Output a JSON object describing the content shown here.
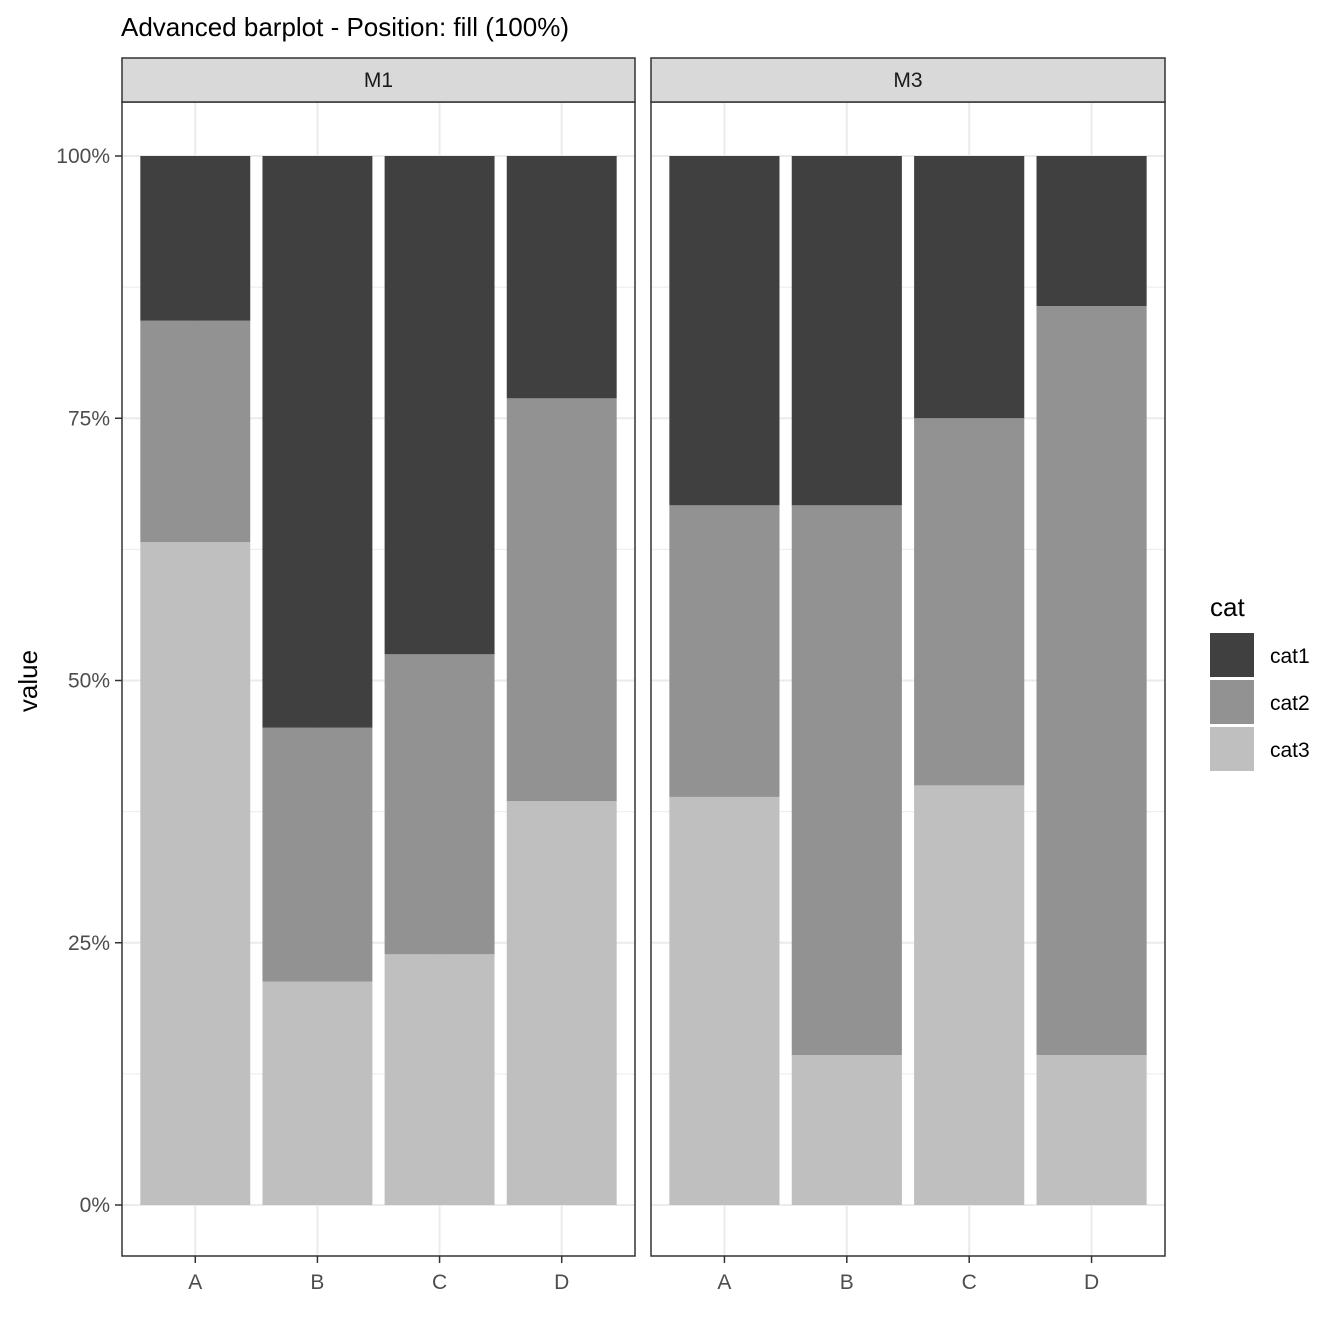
{
  "chart_data": {
    "type": "bar",
    "stacking": "fill",
    "title": "Advanced barplot - Position: fill (100%)",
    "ylabel": "value",
    "xlabel": "",
    "ylim": [
      0,
      1
    ],
    "y_ticks": [
      0,
      0.25,
      0.5,
      0.75,
      1.0
    ],
    "y_tick_labels": [
      "0%",
      "25%",
      "50%",
      "75%",
      "100%"
    ],
    "categories": [
      "A",
      "B",
      "C",
      "D"
    ],
    "grid": true,
    "legend": {
      "title": "cat",
      "position": "right",
      "entries": [
        "cat1",
        "cat2",
        "cat3"
      ]
    },
    "colors": {
      "cat1": "#404040",
      "cat2": "#929292",
      "cat3": "#bfbfbf",
      "strip_bg": "#d9d9d9",
      "grid": "#ebebeb"
    },
    "stack_order_top_to_bottom": [
      "cat1",
      "cat2",
      "cat3"
    ],
    "facets": [
      {
        "name": "M1",
        "series": [
          {
            "name": "cat1",
            "values": [
              0.157,
              0.545,
              0.475,
              0.231
            ]
          },
          {
            "name": "cat2",
            "values": [
              0.211,
              0.242,
              0.286,
              0.384
            ]
          },
          {
            "name": "cat3",
            "values": [
              0.632,
              0.213,
              0.239,
              0.385
            ]
          }
        ]
      },
      {
        "name": "M3",
        "series": [
          {
            "name": "cat1",
            "values": [
              0.333,
              0.333,
              0.25,
              0.143
            ]
          },
          {
            "name": "cat2",
            "values": [
              0.278,
              0.524,
              0.35,
              0.714
            ]
          },
          {
            "name": "cat3",
            "values": [
              0.389,
              0.143,
              0.4,
              0.143
            ]
          }
        ]
      }
    ]
  }
}
